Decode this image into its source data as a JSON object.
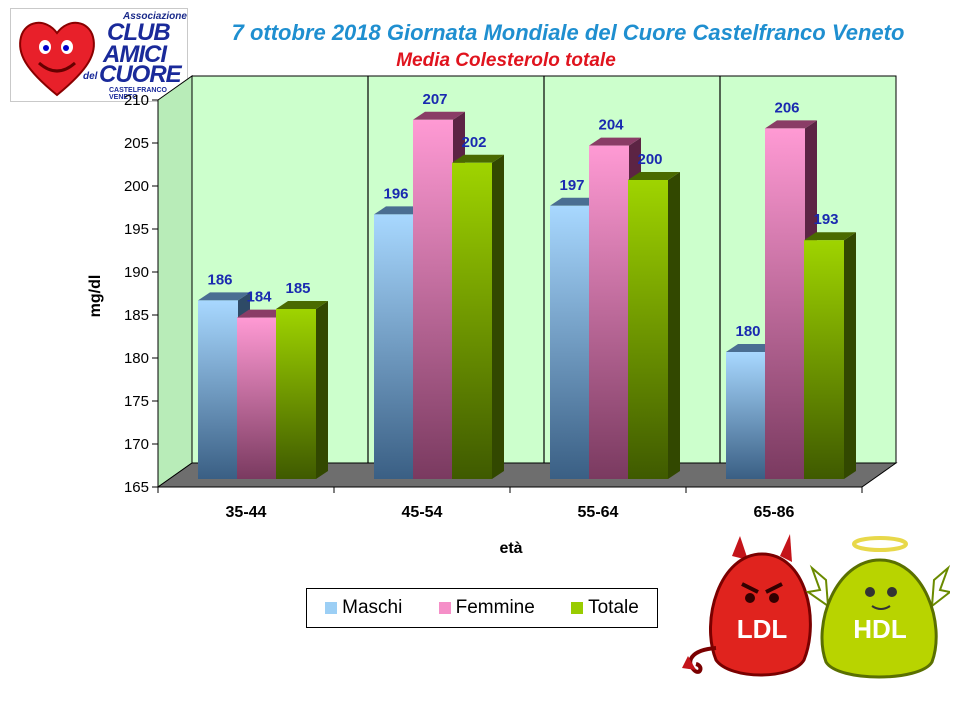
{
  "logo": {
    "line1": "Associazione",
    "line2": "CLUB",
    "line3": "AMICI",
    "line4": "del",
    "line5": "CUORE",
    "line6": "CASTELFRANCO VENETO"
  },
  "mascots": {
    "left_label": "LDL",
    "right_label": "HDL"
  },
  "colors": {
    "maschi": "#9ccff5",
    "femmine": "#f58fc8",
    "totale": "#99cc00",
    "plot_bg": "#ccffcc",
    "label": "#1a2ab0",
    "title": "#1f8fd0",
    "subtitle": "#e0141e"
  },
  "chart_data": {
    "type": "bar",
    "title": "7 ottobre 2018  Giornata Mondiale del Cuore Castelfranco Veneto",
    "subtitle": "Media Colesterolo totale",
    "xlabel": "età",
    "ylabel": "mg/dl",
    "ylim": [
      165,
      210
    ],
    "yticks": [
      165,
      170,
      175,
      180,
      185,
      190,
      195,
      200,
      205,
      210
    ],
    "categories": [
      "35-44",
      "45-54",
      "55-64",
      "65-86"
    ],
    "series": [
      {
        "name": "Maschi",
        "values": [
          186,
          196,
          197,
          180
        ]
      },
      {
        "name": "Femmine",
        "values": [
          184,
          207,
          204,
          206
        ]
      },
      {
        "name": "Totale",
        "values": [
          185,
          202,
          200,
          193
        ]
      }
    ],
    "data_labels": true,
    "grid": false,
    "legend_position": "bottom"
  }
}
